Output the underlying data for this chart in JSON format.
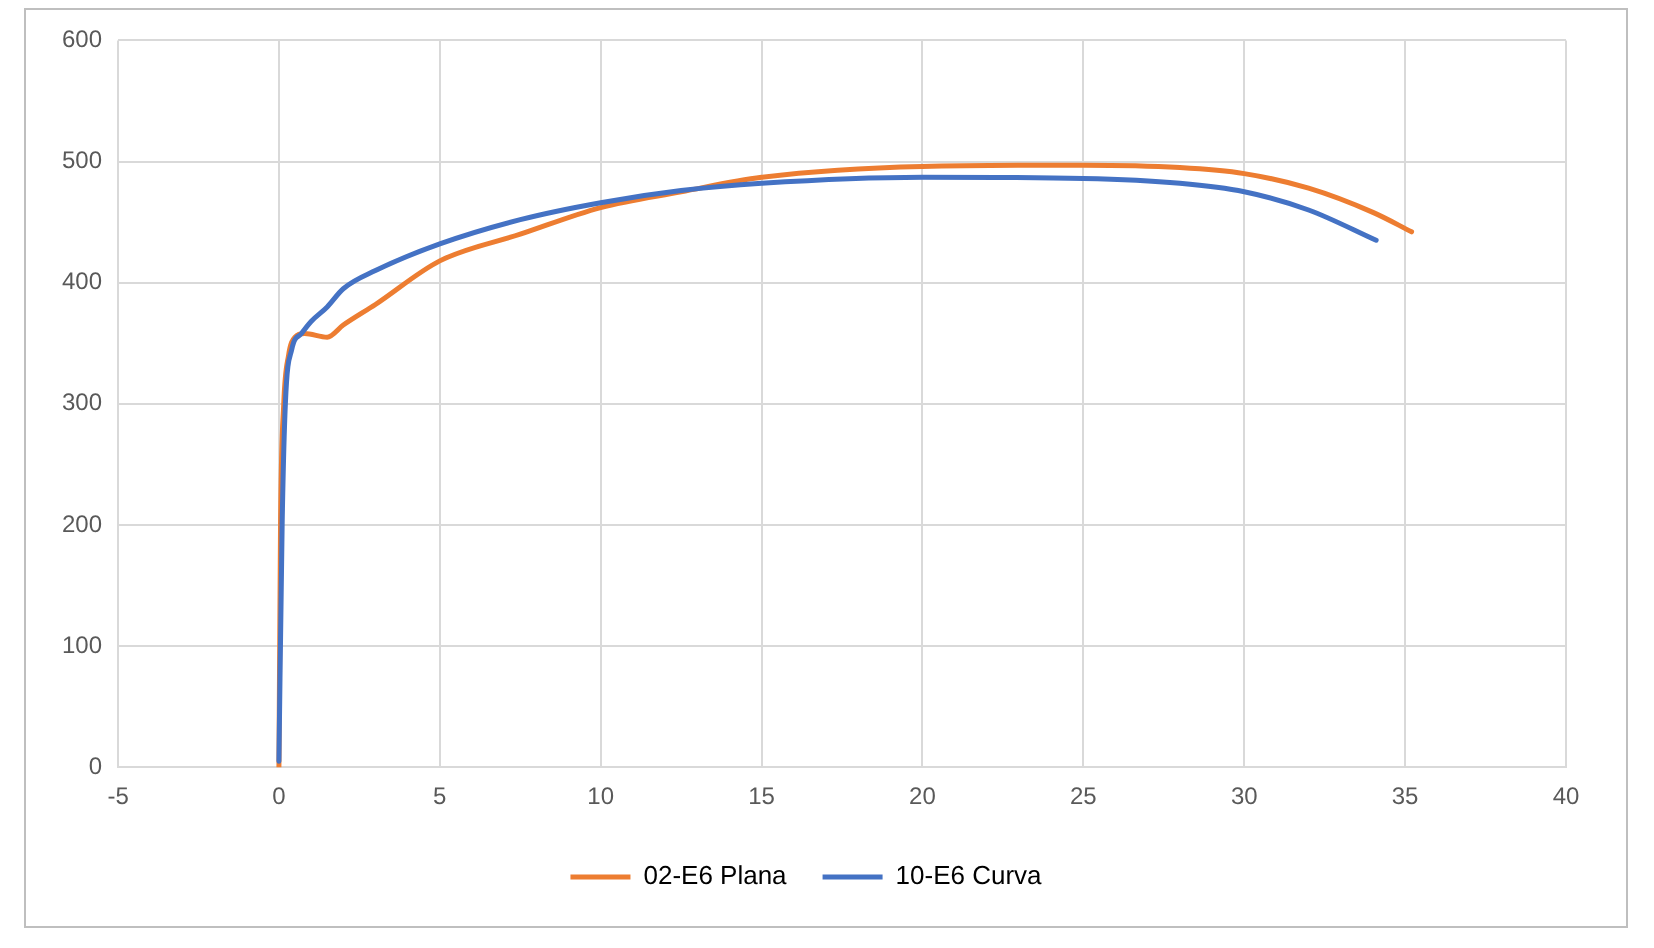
{
  "chart_data": {
    "type": "line",
    "xlim": [
      -5,
      40
    ],
    "xticks": [
      -5,
      0,
      5,
      10,
      15,
      20,
      25,
      30,
      35,
      40
    ],
    "ylim": [
      0,
      600
    ],
    "yticks": [
      0,
      100,
      200,
      300,
      400,
      500,
      600
    ],
    "grid": true,
    "legend": "bottom",
    "marker": "none",
    "line_style": "solid",
    "series": [
      {
        "name": "02-E6 Plana",
        "color": "#ed7d31",
        "x": [
          0,
          0.05,
          0.15,
          0.3,
          0.5,
          0.8,
          1.5,
          2,
          3,
          5,
          7.5,
          10,
          12.5,
          15,
          20,
          25,
          28,
          30,
          32,
          34,
          35.2
        ],
        "values": [
          0,
          200,
          300,
          340,
          355,
          358,
          355,
          365,
          382,
          418,
          440,
          462,
          475,
          487,
          496,
          497,
          495,
          490,
          478,
          458,
          442
        ]
      },
      {
        "name": "10-E6 Curva",
        "color": "#4472c4",
        "x": [
          0,
          0.1,
          0.2,
          0.4,
          0.7,
          1,
          1.5,
          2,
          3,
          5,
          7.5,
          10,
          12.5,
          15,
          20,
          25,
          28,
          30,
          32,
          34.1
        ],
        "values": [
          5,
          200,
          300,
          345,
          358,
          368,
          380,
          395,
          410,
          432,
          452,
          466,
          476,
          482,
          487,
          486,
          482,
          475,
          460,
          435
        ]
      }
    ]
  }
}
